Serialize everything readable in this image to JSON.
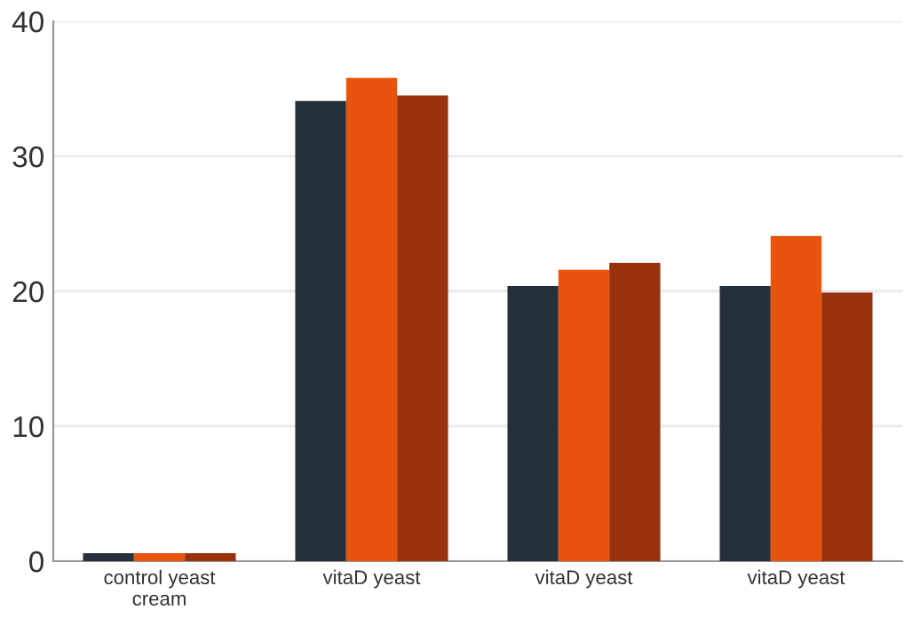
{
  "chart_data": {
    "type": "bar",
    "categories": [
      "control yeast\ncream",
      "vitaD yeast",
      "vitaD yeast",
      "vitaD yeast"
    ],
    "series": [
      {
        "color": "#26303b",
        "values": [
          0.6,
          34.1,
          20.4,
          20.4
        ]
      },
      {
        "color": "#e8530e",
        "values": [
          0.6,
          35.8,
          21.6,
          24.1
        ]
      },
      {
        "color": "#97310e",
        "values": [
          0.6,
          34.5,
          22.1,
          19.9
        ]
      }
    ],
    "ylim": [
      0,
      40
    ],
    "yticks": [
      0,
      10,
      20,
      30,
      40
    ],
    "grid": "y"
  }
}
